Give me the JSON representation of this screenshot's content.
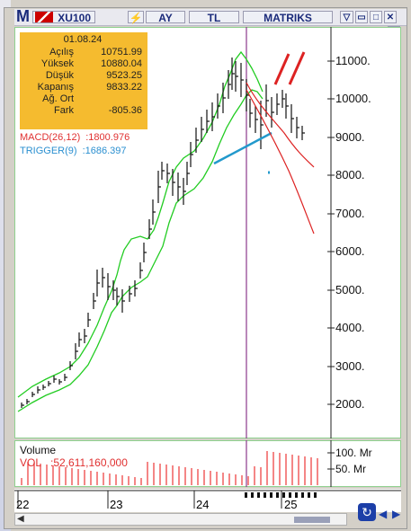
{
  "title_bar": {
    "app_letter": "M",
    "symbol": "XU100",
    "period": "AY",
    "currency": "TL",
    "brand": "MATRIKS"
  },
  "info_box": {
    "date": "01.08.24",
    "rows": [
      {
        "label": "Açılış",
        "value": "10751.99"
      },
      {
        "label": "Yüksek",
        "value": "10880.04"
      },
      {
        "label": "Düşük",
        "value": "9523.25"
      },
      {
        "label": "Kapanış",
        "value": "9833.22"
      },
      {
        "label": "Ağ. Ort",
        "value": ""
      },
      {
        "label": "Fark",
        "value": "-805.36"
      }
    ]
  },
  "indicators": {
    "macd_label": "MACD(26,12)",
    "macd_value": ":1800.976",
    "trigger_label": "TRIGGER(9)",
    "trigger_value": ":1686.397",
    "macd_color": "#e03030",
    "trigger_color": "#2a8fd0"
  },
  "price_axis": [
    "11000.",
    "10000.",
    "9000.",
    "8000.",
    "7000.",
    "6000.",
    "5000.",
    "4000.",
    "3000.",
    "2000."
  ],
  "volume": {
    "title": "Volume",
    "label": "VOL",
    "value": ":52,611,160,000",
    "axis": [
      "100. Mr",
      "50. Mr"
    ]
  },
  "x_axis": [
    "22",
    "23",
    "24",
    "25"
  ],
  "colors": {
    "chart_bg": "#ffffff",
    "info_bg": "#f5bb2f",
    "band": "#22cc22",
    "bars": "#111111",
    "red_trend": "#dd2222",
    "blue_trend": "#2299cc",
    "cursor": "#8b3a8b",
    "volume_bars": "#ee4444"
  }
}
